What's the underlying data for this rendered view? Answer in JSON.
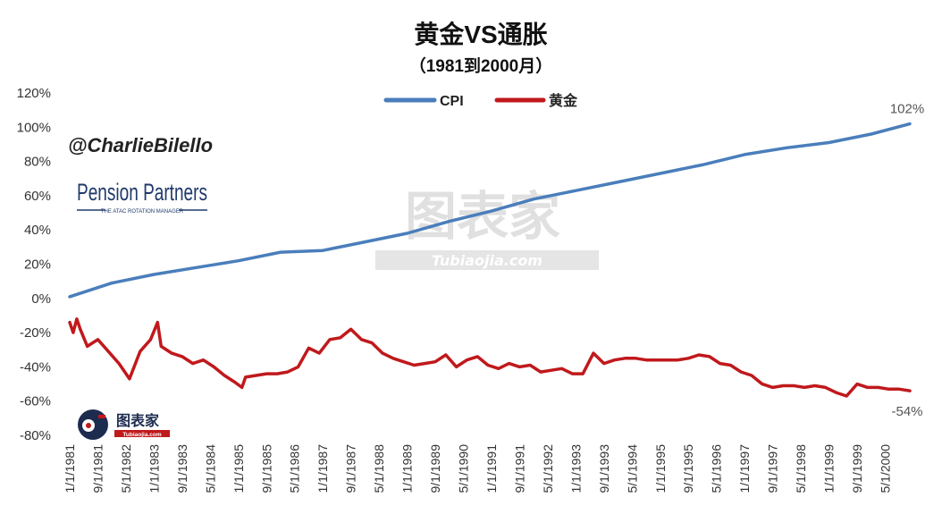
{
  "chart_data": {
    "type": "line",
    "title": "黄金VS通胀",
    "subtitle": "（1981到2000月）",
    "xlabel": "",
    "ylabel": "",
    "ylim": [
      -80,
      120
    ],
    "yticks": [
      "120%",
      "100%",
      "80%",
      "60%",
      "40%",
      "20%",
      "0%",
      "-20%",
      "-40%",
      "-60%",
      "-80%"
    ],
    "ytick_values": [
      120,
      100,
      80,
      60,
      40,
      20,
      0,
      -20,
      -40,
      -60,
      -80
    ],
    "x_tick_labels": [
      "1/1/1981",
      "9/1/1981",
      "5/1/1982",
      "1/1/1983",
      "9/1/1983",
      "5/1/1984",
      "1/1/1985",
      "9/1/1985",
      "5/1/1986",
      "1/1/1987",
      "9/1/1987",
      "5/1/1988",
      "1/1/1989",
      "9/1/1989",
      "5/1/1990",
      "1/1/1991",
      "9/1/1991",
      "5/1/1992",
      "1/1/1993",
      "9/1/1993",
      "5/1/1994",
      "1/1/1995",
      "9/1/1995",
      "5/1/1996",
      "1/1/1997",
      "9/1/1997",
      "5/1/1998",
      "1/1/1999",
      "9/1/1999",
      "5/1/2000"
    ],
    "x_range": [
      "1/1/1981",
      "12/1/2000"
    ],
    "grid": false,
    "legend_position": "top-center",
    "series": [
      {
        "name": "CPI",
        "color": "#4a7ebb",
        "end_label": "102%",
        "points": [
          [
            "1/1/1981",
            1
          ],
          [
            "1/1/1982",
            9
          ],
          [
            "1/1/1983",
            14
          ],
          [
            "1/1/1984",
            18
          ],
          [
            "1/1/1985",
            22
          ],
          [
            "1/1/1986",
            27
          ],
          [
            "1/1/1987",
            28
          ],
          [
            "1/1/1988",
            33
          ],
          [
            "1/1/1989",
            38
          ],
          [
            "1/1/1990",
            45
          ],
          [
            "1/1/1991",
            51
          ],
          [
            "1/1/1992",
            58
          ],
          [
            "1/1/1993",
            63
          ],
          [
            "1/1/1994",
            68
          ],
          [
            "1/1/1995",
            73
          ],
          [
            "1/1/1996",
            78
          ],
          [
            "1/1/1997",
            84
          ],
          [
            "1/1/1998",
            88
          ],
          [
            "1/1/1999",
            91
          ],
          [
            "1/1/2000",
            96
          ],
          [
            "12/1/2000",
            102
          ]
        ]
      },
      {
        "name": "黄金",
        "color": "#c0191c",
        "end_label": "-54%",
        "points": [
          [
            "1/1/1981",
            -14
          ],
          [
            "2/1/1981",
            -20
          ],
          [
            "3/1/1981",
            -12
          ],
          [
            "4/1/1981",
            -18
          ],
          [
            "6/1/1981",
            -28
          ],
          [
            "9/1/1981",
            -24
          ],
          [
            "12/1/1981",
            -31
          ],
          [
            "3/1/1982",
            -38
          ],
          [
            "6/1/1982",
            -47
          ],
          [
            "9/1/1982",
            -31
          ],
          [
            "12/1/1982",
            -24
          ],
          [
            "2/1/1983",
            -14
          ],
          [
            "3/1/1983",
            -28
          ],
          [
            "6/1/1983",
            -32
          ],
          [
            "9/1/1983",
            -34
          ],
          [
            "12/1/1983",
            -38
          ],
          [
            "3/1/1984",
            -36
          ],
          [
            "6/1/1984",
            -40
          ],
          [
            "9/1/1984",
            -45
          ],
          [
            "12/1/1984",
            -49
          ],
          [
            "2/1/1985",
            -52
          ],
          [
            "3/1/1985",
            -46
          ],
          [
            "6/1/1985",
            -45
          ],
          [
            "9/1/1985",
            -44
          ],
          [
            "12/1/1985",
            -44
          ],
          [
            "3/1/1986",
            -43
          ],
          [
            "6/1/1986",
            -40
          ],
          [
            "9/1/1986",
            -29
          ],
          [
            "12/1/1986",
            -32
          ],
          [
            "3/1/1987",
            -24
          ],
          [
            "6/1/1987",
            -23
          ],
          [
            "9/1/1987",
            -18
          ],
          [
            "12/1/1987",
            -24
          ],
          [
            "3/1/1988",
            -26
          ],
          [
            "6/1/1988",
            -32
          ],
          [
            "9/1/1988",
            -35
          ],
          [
            "12/1/1988",
            -37
          ],
          [
            "3/1/1989",
            -39
          ],
          [
            "6/1/1989",
            -38
          ],
          [
            "9/1/1989",
            -37
          ],
          [
            "12/1/1989",
            -33
          ],
          [
            "3/1/1990",
            -40
          ],
          [
            "6/1/1990",
            -36
          ],
          [
            "9/1/1990",
            -34
          ],
          [
            "12/1/1990",
            -39
          ],
          [
            "3/1/1991",
            -41
          ],
          [
            "6/1/1991",
            -38
          ],
          [
            "9/1/1991",
            -40
          ],
          [
            "12/1/1991",
            -39
          ],
          [
            "3/1/1992",
            -43
          ],
          [
            "6/1/1992",
            -42
          ],
          [
            "9/1/1992",
            -41
          ],
          [
            "12/1/1992",
            -44
          ],
          [
            "3/1/1993",
            -44
          ],
          [
            "6/1/1993",
            -32
          ],
          [
            "9/1/1993",
            -38
          ],
          [
            "12/1/1993",
            -36
          ],
          [
            "3/1/1994",
            -35
          ],
          [
            "6/1/1994",
            -35
          ],
          [
            "9/1/1994",
            -36
          ],
          [
            "12/1/1994",
            -36
          ],
          [
            "3/1/1995",
            -36
          ],
          [
            "6/1/1995",
            -36
          ],
          [
            "9/1/1995",
            -35
          ],
          [
            "12/1/1995",
            -33
          ],
          [
            "3/1/1996",
            -34
          ],
          [
            "6/1/1996",
            -38
          ],
          [
            "9/1/1996",
            -39
          ],
          [
            "12/1/1996",
            -43
          ],
          [
            "3/1/1997",
            -45
          ],
          [
            "6/1/1997",
            -50
          ],
          [
            "9/1/1997",
            -52
          ],
          [
            "12/1/1997",
            -51
          ],
          [
            "3/1/1998",
            -51
          ],
          [
            "6/1/1998",
            -52
          ],
          [
            "9/1/1998",
            -51
          ],
          [
            "12/1/1998",
            -52
          ],
          [
            "3/1/1999",
            -55
          ],
          [
            "6/1/1999",
            -57
          ],
          [
            "9/1/1999",
            -50
          ],
          [
            "12/1/1999",
            -52
          ],
          [
            "3/1/2000",
            -52
          ],
          [
            "6/1/2000",
            -53
          ],
          [
            "9/1/2000",
            -53
          ],
          [
            "12/1/2000",
            -54
          ]
        ]
      }
    ]
  },
  "watermarks": {
    "handle": "@CharlieBilello",
    "brand": "Pension Partners",
    "brand_tagline": "THE ATAC ROTATION MANAGER",
    "site_cn": "图表家",
    "site_en": "Tubiaojia.com",
    "logo_cn": "图表家",
    "logo_en": "Tubiaojia.com"
  }
}
